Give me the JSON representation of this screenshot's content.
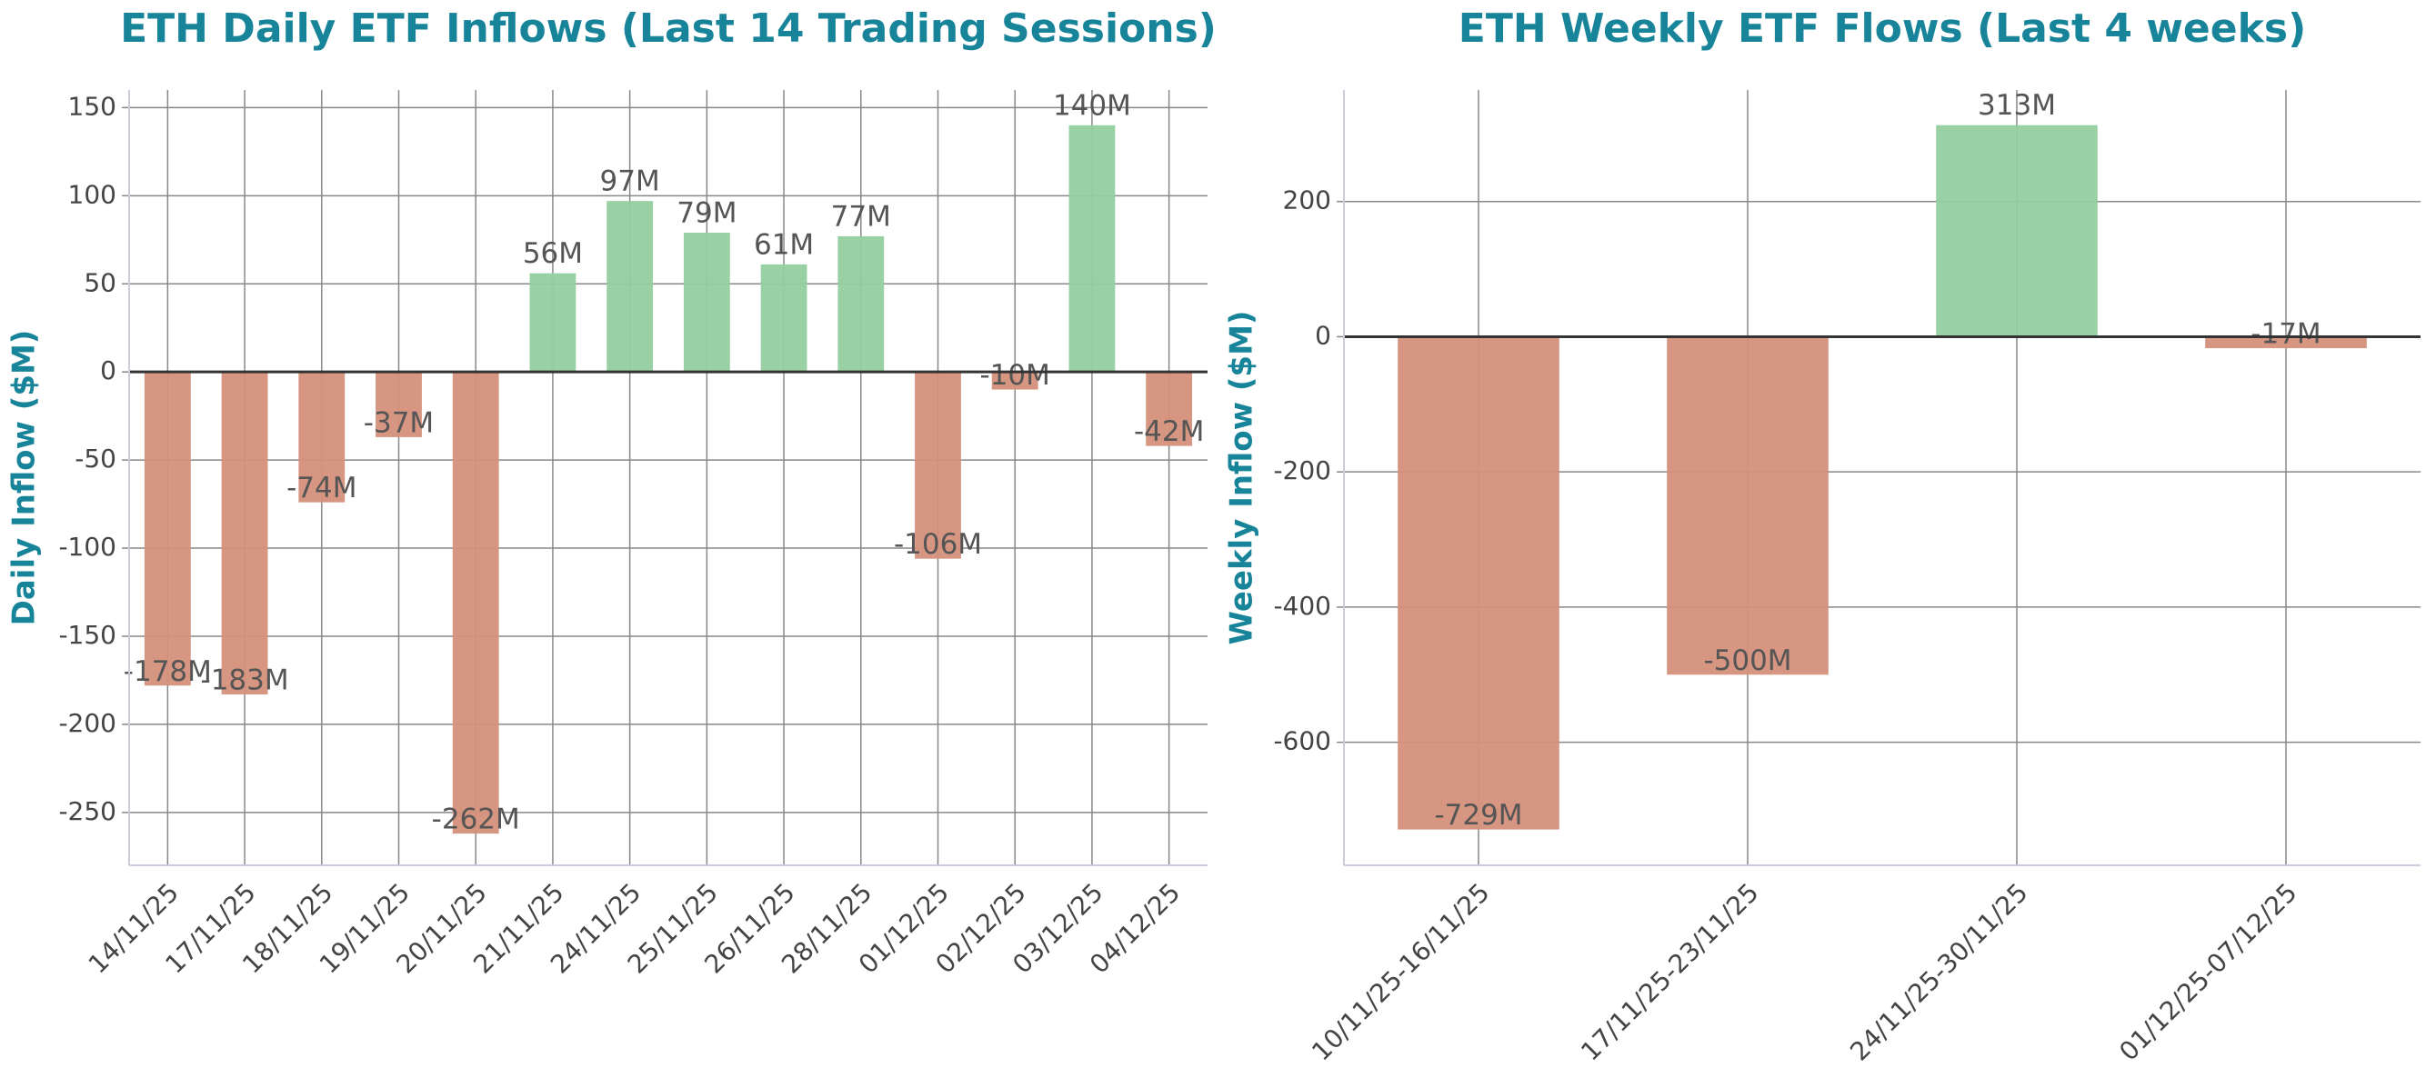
{
  "chart_data": [
    {
      "type": "bar",
      "title": "ETH Daily ETF Inflows (Last 14 Trading Sessions)",
      "y_label": "Daily Inflow ($M)",
      "categories": [
        "14/11/25",
        "17/11/25",
        "18/11/25",
        "19/11/25",
        "20/11/25",
        "21/11/25",
        "24/11/25",
        "25/11/25",
        "26/11/25",
        "28/11/25",
        "01/12/25",
        "02/12/25",
        "03/12/25",
        "04/12/25"
      ],
      "values": [
        -178,
        -183,
        -74,
        -37,
        -262,
        56,
        97,
        79,
        61,
        77,
        -106,
        -10,
        140,
        -42
      ],
      "value_labels": [
        "-178M",
        "-183M",
        "-74M",
        "-37M",
        "-262M",
        "56M",
        "97M",
        "79M",
        "61M",
        "77M",
        "-106M",
        "-10M",
        "140M",
        "-42M"
      ],
      "positive_color": "#93cfa0",
      "negative_color": "#d4907a",
      "ylim": [
        -280,
        160
      ],
      "yticks": [
        -250,
        -200,
        -150,
        -100,
        -50,
        0,
        50,
        100,
        150
      ],
      "grid": true
    },
    {
      "type": "bar",
      "title": "ETH Weekly ETF Flows (Last 4 weeks)",
      "y_label": "Weekly Inflow ($M)",
      "categories": [
        "10/11/25-16/11/25",
        "17/11/25-23/11/25",
        "24/11/25-30/11/25",
        "01/12/25-07/12/25"
      ],
      "values": [
        -729,
        -500,
        313,
        -17
      ],
      "value_labels": [
        "-729M",
        "-500M",
        "313M",
        "-17M"
      ],
      "positive_color": "#93cfa0",
      "negative_color": "#d4907a",
      "ylim": [
        -782,
        365
      ],
      "yticks": [
        -600,
        -400,
        -200,
        0,
        200
      ],
      "grid": true
    }
  ]
}
